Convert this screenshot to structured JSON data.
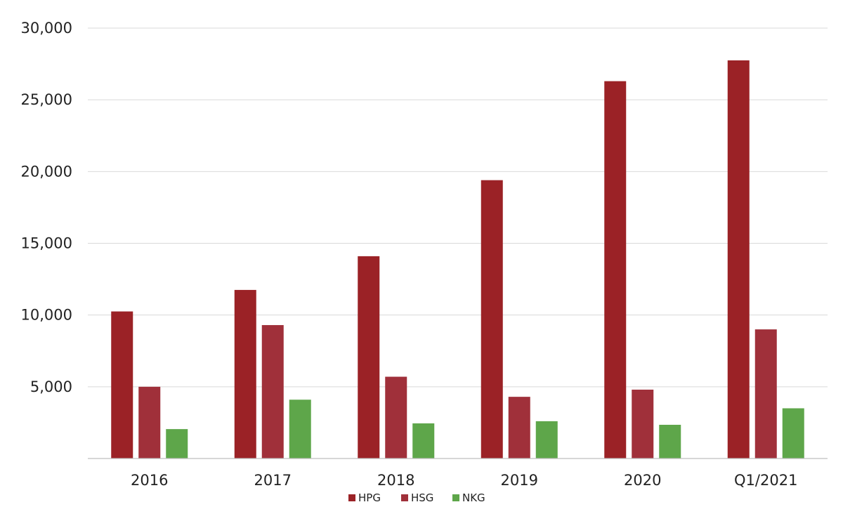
{
  "chart_data": {
    "type": "bar",
    "title": "",
    "xlabel": "",
    "ylabel": "",
    "categories": [
      "2016",
      "2017",
      "2018",
      "2019",
      "2020",
      "Q1/2021"
    ],
    "series": [
      {
        "name": "HPG",
        "color": "#9b2226",
        "values": [
          10250,
          11750,
          14100,
          19400,
          26300,
          27750
        ]
      },
      {
        "name": "HSG",
        "color": "#a0303a",
        "values": [
          5000,
          9300,
          5700,
          4300,
          4800,
          9000
        ]
      },
      {
        "name": "NKG",
        "color": "#5ea64a",
        "values": [
          2050,
          4100,
          2450,
          2600,
          2350,
          3500
        ]
      }
    ],
    "ylim": [
      0,
      30000
    ],
    "yticks": [
      "",
      "5,000",
      "10,000",
      "15,000",
      "20,000",
      "25,000",
      "30,000"
    ],
    "ytick_values": [
      0,
      5000,
      10000,
      15000,
      20000,
      25000,
      30000
    ],
    "grid": true,
    "legend_position": "bottom-center"
  }
}
